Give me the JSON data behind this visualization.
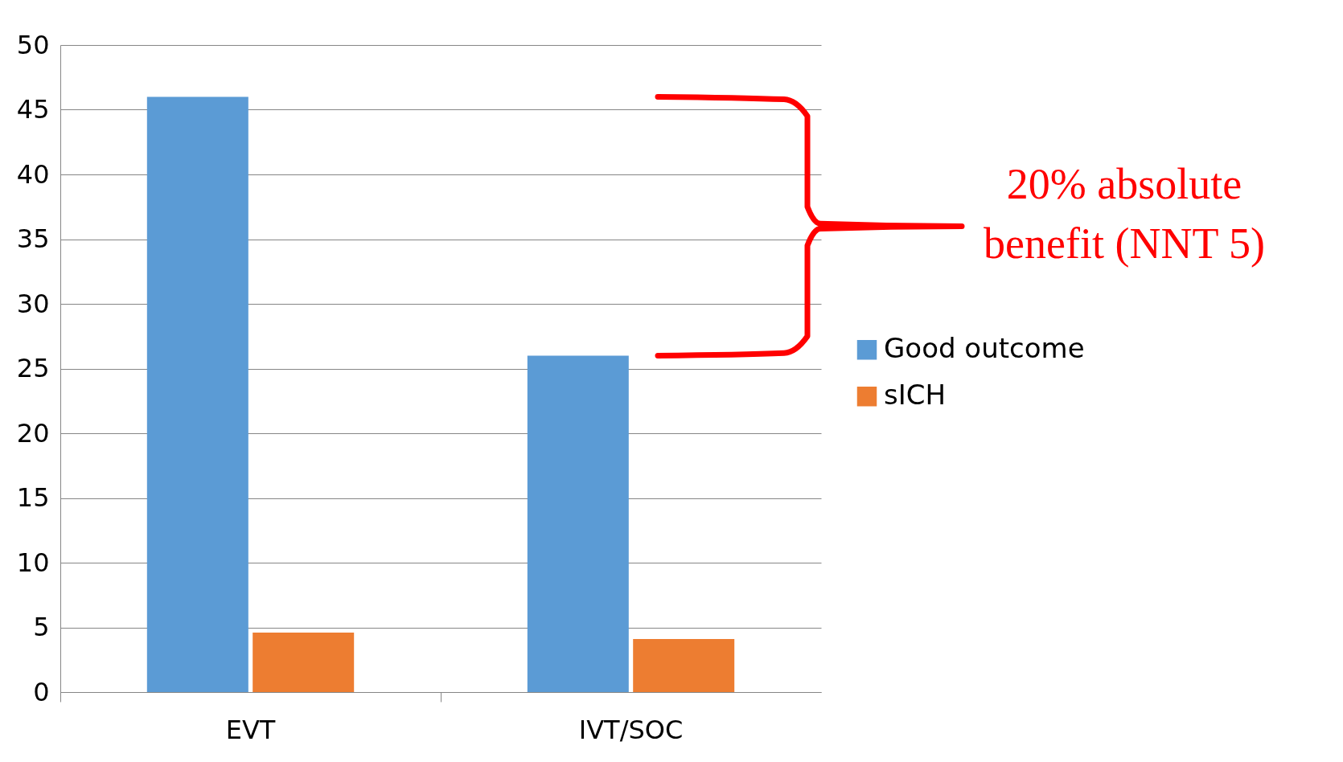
{
  "chart_data": {
    "type": "bar",
    "categories": [
      "EVT",
      "IVT/SOC"
    ],
    "series": [
      {
        "name": "Good outcome",
        "color": "#5b9bd5",
        "values": [
          46,
          26
        ]
      },
      {
        "name": "sICH",
        "color": "#ed7d31",
        "values": [
          4.6,
          4.1
        ]
      }
    ],
    "ylim": [
      0,
      50
    ],
    "yticks": [
      0,
      5,
      10,
      15,
      20,
      25,
      30,
      35,
      40,
      45,
      50
    ],
    "grid": "y",
    "legend": "right",
    "annotations": [
      "20% absolute benefit (NNT 5)"
    ]
  }
}
